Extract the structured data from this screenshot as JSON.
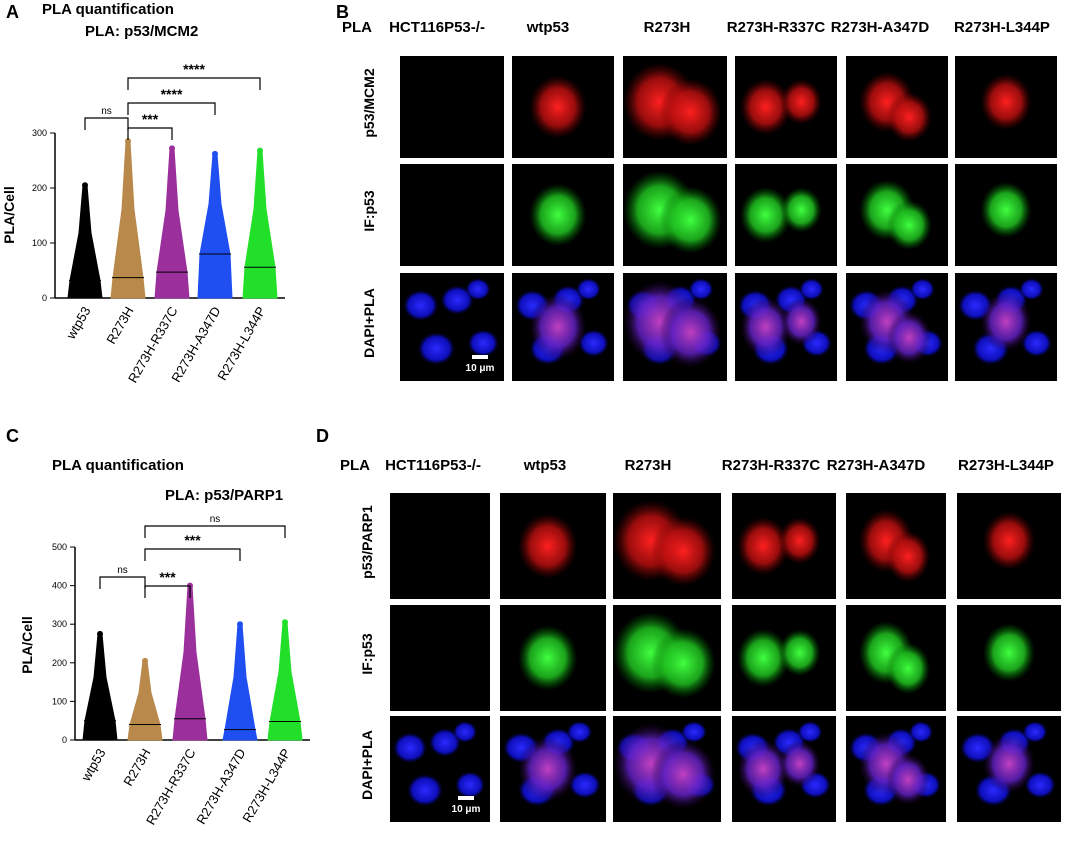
{
  "panels": {
    "A": "A",
    "B": "B",
    "C": "C",
    "D": "D"
  },
  "chart_data": [
    {
      "type": "strip",
      "title": "PLA quantification",
      "subtitle": "PLA: p53/MCM2",
      "y_label": "PLA/Cell",
      "categories": [
        "wtp53",
        "R273H",
        "R273H-R337C",
        "R273H-A347D",
        "R273H-L344P"
      ],
      "means": [
        32,
        37,
        47,
        80,
        56
      ],
      "maxima": [
        205,
        285,
        272,
        262,
        268
      ],
      "colors": [
        "#000000",
        "#b8894a",
        "#9b2f9b",
        "#1f4ff0",
        "#22e02a"
      ],
      "ylim": [
        0,
        300
      ],
      "yticks": [
        0,
        100,
        200,
        300
      ],
      "comparisons": [
        {
          "pair": [
            "wtp53",
            "R273H"
          ],
          "label": "ns"
        },
        {
          "pair": [
            "R273H",
            "R273H-R337C"
          ],
          "label": "***"
        },
        {
          "pair": [
            "R273H",
            "R273H-A347D"
          ],
          "label": "****"
        },
        {
          "pair": [
            "R273H",
            "R273H-L344P"
          ],
          "label": "****"
        }
      ]
    },
    {
      "type": "strip",
      "title": "PLA quantification",
      "subtitle": "PLA: p53/PARP1",
      "y_label": "PLA/Cell",
      "categories": [
        "wtp53",
        "R273H",
        "R273H-R337C",
        "R273H-A347D",
        "R273H-L344P"
      ],
      "means": [
        50,
        40,
        55,
        27,
        48
      ],
      "maxima": [
        275,
        205,
        400,
        300,
        305
      ],
      "colors": [
        "#000000",
        "#b8894a",
        "#9b2f9b",
        "#1f4ff0",
        "#22e02a"
      ],
      "ylim": [
        0,
        500
      ],
      "yticks": [
        0,
        100,
        200,
        300,
        400,
        500
      ],
      "comparisons": [
        {
          "pair": [
            "wtp53",
            "R273H"
          ],
          "label": "ns"
        },
        {
          "pair": [
            "R273H",
            "R273H-R337C"
          ],
          "label": "***"
        },
        {
          "pair": [
            "R273H",
            "R273H-A347D"
          ],
          "label": "***"
        },
        {
          "pair": [
            "R273H",
            "R273H-L344P"
          ],
          "label": "ns"
        }
      ]
    }
  ],
  "microscopy": [
    {
      "corner_label": "PLA",
      "columns": [
        "HCT116P53-/-",
        "wtp53",
        "R273H",
        "R273H-R337C",
        "R273H-A347D",
        "R273H-L344P"
      ],
      "rows": [
        "p53/MCM2",
        "IF:p53",
        "DAPI+PLA"
      ],
      "scale_bar": "10 μm"
    },
    {
      "corner_label": "PLA",
      "columns": [
        "HCT116P53-/-",
        "wtp53",
        "R273H",
        "R273H-R337C",
        "R273H-A347D",
        "R273H-L344P"
      ],
      "rows": [
        "p53/PARP1",
        "IF:p53",
        "DAPI+PLA"
      ],
      "scale_bar": "10 μm"
    }
  ]
}
